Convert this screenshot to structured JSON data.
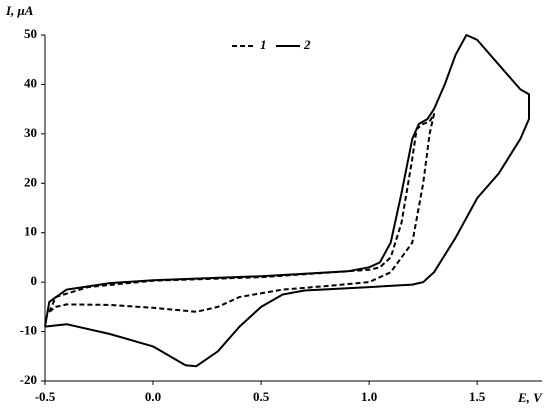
{
  "chart_data": {
    "type": "line",
    "x_label": "E, V",
    "y_label": "I, μA",
    "xlim": [
      -0.5,
      1.8
    ],
    "ylim": [
      -20,
      50
    ],
    "xticks": [
      -0.5,
      {
        "value": 0,
        "label": "0.0"
      },
      0.5,
      {
        "value": 1,
        "label": "1.0"
      },
      1.5
    ],
    "yticks": [
      -20,
      -10,
      0,
      10,
      20,
      30,
      40,
      50
    ],
    "grid": false,
    "legend": "top",
    "series": [
      {
        "name": "1",
        "color": "#000000",
        "dash": "dashed",
        "x": [
          -0.48,
          -0.45,
          -0.4,
          -0.2,
          0.0,
          0.15,
          0.2,
          0.3,
          0.4,
          0.6,
          0.8,
          1.0,
          1.1,
          1.2,
          1.25,
          1.28,
          1.3,
          1.28,
          1.25,
          1.22,
          1.2,
          1.15,
          1.1,
          1.05,
          1.0,
          0.5,
          0.0,
          -0.3,
          -0.45,
          -0.48
        ],
        "values": [
          -6,
          -5,
          -4.5,
          -4.6,
          -5.2,
          -5.8,
          -6,
          -5,
          -3,
          -1.5,
          -0.8,
          0,
          2,
          8,
          20,
          30,
          34,
          32.5,
          32,
          31,
          25,
          12,
          5,
          3,
          2.5,
          1,
          0.3,
          -1,
          -3,
          -6
        ]
      },
      {
        "name": "2",
        "color": "#000000",
        "dash": "solid",
        "x": [
          -0.5,
          -0.48,
          -0.4,
          -0.2,
          0.0,
          0.5,
          0.9,
          1.0,
          1.05,
          1.1,
          1.15,
          1.2,
          1.23,
          1.27,
          1.3,
          1.35,
          1.4,
          1.45,
          1.5,
          1.6,
          1.7,
          1.74,
          1.74,
          1.7,
          1.6,
          1.5,
          1.4,
          1.3,
          1.25,
          1.2,
          1.0,
          0.7,
          0.6,
          0.5,
          0.4,
          0.3,
          0.2,
          0.15,
          0.0,
          -0.2,
          -0.4,
          -0.5
        ],
        "values": [
          -9,
          -4,
          -1.5,
          -0.2,
          0.4,
          1.2,
          2.2,
          3,
          4,
          8,
          18,
          29,
          32,
          33,
          35,
          40,
          46,
          50,
          49,
          44,
          39,
          38,
          33,
          29,
          22,
          17,
          9,
          2,
          0,
          -0.5,
          -1,
          -1.7,
          -2.5,
          -5,
          -9,
          -14,
          -17,
          -16.8,
          -13,
          -10.5,
          -8.5,
          -9
        ]
      }
    ]
  }
}
